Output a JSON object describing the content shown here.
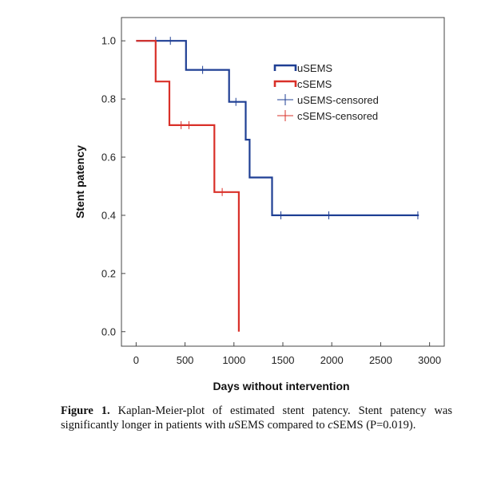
{
  "chart_data": {
    "type": "line",
    "step": true,
    "xlabel": "Days without intervention",
    "ylabel": "Stent patency",
    "xlim": [
      -150,
      3150
    ],
    "ylim": [
      -0.05,
      1.08
    ],
    "xticks": [
      0,
      500,
      1000,
      1500,
      2000,
      2500,
      3000
    ],
    "yticks": [
      0.0,
      0.2,
      0.4,
      0.6,
      0.8,
      1.0
    ],
    "legend_position": "top-right",
    "series": [
      {
        "name": "uSEMS",
        "color": "#1f3f94",
        "steps": [
          [
            0,
            1.0
          ],
          [
            510,
            1.0
          ],
          [
            510,
            0.9
          ],
          [
            950,
            0.9
          ],
          [
            950,
            0.79
          ],
          [
            1120,
            0.79
          ],
          [
            1120,
            0.66
          ],
          [
            1160,
            0.66
          ],
          [
            1160,
            0.53
          ],
          [
            1390,
            0.53
          ],
          [
            1390,
            0.4
          ],
          [
            2890,
            0.4
          ]
        ],
        "censored": [
          [
            200,
            1.0
          ],
          [
            350,
            1.0
          ],
          [
            680,
            0.9
          ],
          [
            1020,
            0.79
          ],
          [
            1480,
            0.4
          ],
          [
            1970,
            0.4
          ],
          [
            2880,
            0.4
          ]
        ]
      },
      {
        "name": "cSEMS",
        "color": "#d93029",
        "steps": [
          [
            0,
            1.0
          ],
          [
            200,
            1.0
          ],
          [
            200,
            0.86
          ],
          [
            340,
            0.86
          ],
          [
            340,
            0.71
          ],
          [
            800,
            0.71
          ],
          [
            800,
            0.48
          ],
          [
            1050,
            0.48
          ],
          [
            1050,
            0.0
          ]
        ],
        "censored": [
          [
            460,
            0.71
          ],
          [
            540,
            0.71
          ],
          [
            880,
            0.48
          ]
        ]
      }
    ],
    "legend": [
      {
        "label": "uSEMS",
        "kind": "line",
        "color": "#1f3f94"
      },
      {
        "label": "cSEMS",
        "kind": "line",
        "color": "#d93029"
      },
      {
        "label": "uSEMS-censored",
        "kind": "censor",
        "color": "#1f3f94"
      },
      {
        "label": "cSEMS-censored",
        "kind": "censor",
        "color": "#d93029"
      }
    ]
  },
  "caption": {
    "figure_label": "Figure 1.",
    "text_part1": " Kaplan-Meier-plot of estimated stent patency. Stent patency was significantly longer in patients with ",
    "u_italic": "u",
    "text_part2": "SEMS compared to ",
    "c_italic": "c",
    "text_part3": "SEMS (P=0.019)."
  }
}
